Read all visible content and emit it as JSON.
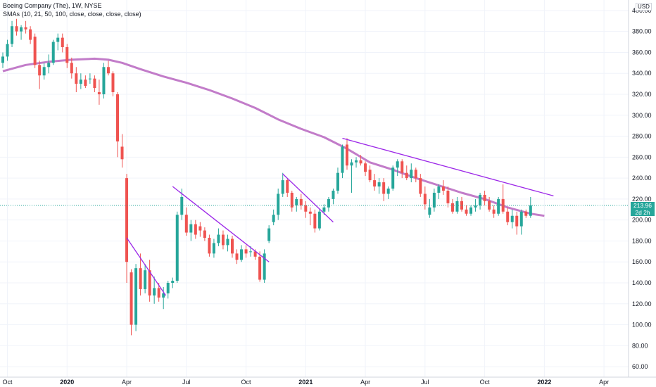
{
  "legend": {
    "title": "Boeing Company (The), 1W, NYSE",
    "indicator": "SMAs (10, 21, 50, 100, close, close, close, close)"
  },
  "currency": "USD",
  "last_price": {
    "value": "213.96",
    "countdown": "2d 2h"
  },
  "colors": {
    "up": "#26a69a",
    "down": "#ef5350",
    "sma": "#c27cc9",
    "trend": "#9c27e8",
    "grid": "#f0f3fa",
    "last": "#26a69a"
  },
  "chart_data": {
    "type": "candlestick",
    "y_axis": {
      "min": 50,
      "max": 410,
      "ticks": [
        60,
        80,
        100,
        120,
        140,
        160,
        180,
        200,
        220,
        240,
        260,
        280,
        300,
        320,
        340,
        360,
        380,
        400
      ]
    },
    "x_axis": {
      "ticks": [
        {
          "label": "Oct",
          "w": 1
        },
        {
          "label": "2020",
          "w": 14
        },
        {
          "label": "Apr",
          "w": 27
        },
        {
          "label": "Jul",
          "w": 40
        },
        {
          "label": "Oct",
          "w": 53
        },
        {
          "label": "2021",
          "w": 66
        },
        {
          "label": "Apr",
          "w": 79
        },
        {
          "label": "Jul",
          "w": 92
        },
        {
          "label": "Oct",
          "w": 105
        },
        {
          "label": "2022",
          "w": 118
        },
        {
          "label": "Apr",
          "w": 131
        }
      ]
    },
    "candles": [
      {
        "o": 350,
        "h": 360,
        "l": 345,
        "c": 356
      },
      {
        "o": 356,
        "h": 372,
        "l": 352,
        "c": 368
      },
      {
        "o": 368,
        "h": 390,
        "l": 365,
        "c": 385
      },
      {
        "o": 385,
        "h": 392,
        "l": 376,
        "c": 380
      },
      {
        "o": 380,
        "h": 386,
        "l": 372,
        "c": 384
      },
      {
        "o": 384,
        "h": 390,
        "l": 378,
        "c": 382
      },
      {
        "o": 382,
        "h": 385,
        "l": 368,
        "c": 372
      },
      {
        "o": 375,
        "h": 378,
        "l": 345,
        "c": 348
      },
      {
        "o": 348,
        "h": 352,
        "l": 325,
        "c": 338
      },
      {
        "o": 338,
        "h": 350,
        "l": 334,
        "c": 346
      },
      {
        "o": 346,
        "h": 358,
        "l": 340,
        "c": 350
      },
      {
        "o": 350,
        "h": 372,
        "l": 348,
        "c": 370
      },
      {
        "o": 370,
        "h": 378,
        "l": 362,
        "c": 374
      },
      {
        "o": 374,
        "h": 378,
        "l": 360,
        "c": 365
      },
      {
        "o": 365,
        "h": 368,
        "l": 345,
        "c": 350
      },
      {
        "o": 350,
        "h": 355,
        "l": 335,
        "c": 340
      },
      {
        "o": 340,
        "h": 346,
        "l": 322,
        "c": 330
      },
      {
        "o": 330,
        "h": 340,
        "l": 325,
        "c": 334
      },
      {
        "o": 334,
        "h": 338,
        "l": 326,
        "c": 328
      },
      {
        "o": 335,
        "h": 340,
        "l": 330,
        "c": 335
      },
      {
        "o": 335,
        "h": 338,
        "l": 322,
        "c": 326
      },
      {
        "o": 322,
        "h": 334,
        "l": 310,
        "c": 320
      },
      {
        "o": 320,
        "h": 350,
        "l": 316,
        "c": 346
      },
      {
        "o": 346,
        "h": 352,
        "l": 338,
        "c": 340
      },
      {
        "o": 340,
        "h": 342,
        "l": 318,
        "c": 322
      },
      {
        "o": 320,
        "h": 322,
        "l": 260,
        "c": 275
      },
      {
        "o": 270,
        "h": 282,
        "l": 250,
        "c": 258
      },
      {
        "o": 240,
        "h": 244,
        "l": 140,
        "c": 160
      },
      {
        "o": 150,
        "h": 153,
        "l": 90,
        "c": 100
      },
      {
        "o": 100,
        "h": 158,
        "l": 94,
        "c": 154
      },
      {
        "o": 154,
        "h": 168,
        "l": 128,
        "c": 134
      },
      {
        "o": 134,
        "h": 158,
        "l": 130,
        "c": 152
      },
      {
        "o": 152,
        "h": 162,
        "l": 122,
        "c": 128
      },
      {
        "o": 128,
        "h": 146,
        "l": 120,
        "c": 135
      },
      {
        "o": 135,
        "h": 140,
        "l": 122,
        "c": 126
      },
      {
        "o": 126,
        "h": 136,
        "l": 115,
        "c": 130
      },
      {
        "o": 130,
        "h": 142,
        "l": 125,
        "c": 140
      },
      {
        "o": 140,
        "h": 145,
        "l": 135,
        "c": 142
      },
      {
        "o": 142,
        "h": 208,
        "l": 140,
        "c": 205
      },
      {
        "o": 205,
        "h": 230,
        "l": 200,
        "c": 222
      },
      {
        "o": 205,
        "h": 212,
        "l": 185,
        "c": 188
      },
      {
        "o": 188,
        "h": 200,
        "l": 180,
        "c": 196
      },
      {
        "o": 196,
        "h": 200,
        "l": 182,
        "c": 186
      },
      {
        "o": 194,
        "h": 198,
        "l": 184,
        "c": 190
      },
      {
        "o": 190,
        "h": 193,
        "l": 180,
        "c": 183
      },
      {
        "o": 183,
        "h": 186,
        "l": 165,
        "c": 168
      },
      {
        "o": 168,
        "h": 182,
        "l": 164,
        "c": 178
      },
      {
        "o": 178,
        "h": 192,
        "l": 175,
        "c": 186
      },
      {
        "o": 186,
        "h": 190,
        "l": 172,
        "c": 176
      },
      {
        "o": 176,
        "h": 186,
        "l": 170,
        "c": 182
      },
      {
        "o": 182,
        "h": 185,
        "l": 164,
        "c": 168
      },
      {
        "o": 168,
        "h": 172,
        "l": 158,
        "c": 162
      },
      {
        "o": 162,
        "h": 176,
        "l": 160,
        "c": 172
      },
      {
        "o": 172,
        "h": 176,
        "l": 164,
        "c": 168
      },
      {
        "o": 170,
        "h": 175,
        "l": 165,
        "c": 170
      },
      {
        "o": 170,
        "h": 172,
        "l": 162,
        "c": 165
      },
      {
        "o": 165,
        "h": 170,
        "l": 141,
        "c": 143
      },
      {
        "o": 143,
        "h": 172,
        "l": 140,
        "c": 168
      },
      {
        "o": 180,
        "h": 195,
        "l": 178,
        "c": 192
      },
      {
        "o": 198,
        "h": 210,
        "l": 195,
        "c": 205
      },
      {
        "o": 205,
        "h": 230,
        "l": 200,
        "c": 225
      },
      {
        "o": 225,
        "h": 245,
        "l": 222,
        "c": 238
      },
      {
        "o": 238,
        "h": 240,
        "l": 222,
        "c": 226
      },
      {
        "o": 226,
        "h": 228,
        "l": 208,
        "c": 212
      },
      {
        "o": 214,
        "h": 222,
        "l": 208,
        "c": 220
      },
      {
        "o": 220,
        "h": 225,
        "l": 210,
        "c": 214
      },
      {
        "o": 214,
        "h": 218,
        "l": 202,
        "c": 208
      },
      {
        "o": 208,
        "h": 212,
        "l": 195,
        "c": 206
      },
      {
        "o": 206,
        "h": 210,
        "l": 188,
        "c": 192
      },
      {
        "o": 192,
        "h": 210,
        "l": 190,
        "c": 208
      },
      {
        "o": 208,
        "h": 215,
        "l": 205,
        "c": 212
      },
      {
        "o": 212,
        "h": 222,
        "l": 208,
        "c": 220
      },
      {
        "o": 220,
        "h": 230,
        "l": 215,
        "c": 228
      },
      {
        "o": 228,
        "h": 250,
        "l": 225,
        "c": 245
      },
      {
        "o": 245,
        "h": 272,
        "l": 240,
        "c": 270
      },
      {
        "o": 272,
        "h": 278,
        "l": 248,
        "c": 252
      },
      {
        "o": 252,
        "h": 258,
        "l": 226,
        "c": 255
      },
      {
        "o": 255,
        "h": 260,
        "l": 250,
        "c": 257
      },
      {
        "o": 257,
        "h": 262,
        "l": 252,
        "c": 254
      },
      {
        "o": 254,
        "h": 256,
        "l": 242,
        "c": 246
      },
      {
        "o": 248,
        "h": 252,
        "l": 236,
        "c": 238
      },
      {
        "o": 238,
        "h": 244,
        "l": 228,
        "c": 232
      },
      {
        "o": 232,
        "h": 240,
        "l": 225,
        "c": 236
      },
      {
        "o": 236,
        "h": 240,
        "l": 218,
        "c": 225
      },
      {
        "o": 225,
        "h": 232,
        "l": 220,
        "c": 230
      },
      {
        "o": 230,
        "h": 252,
        "l": 228,
        "c": 250
      },
      {
        "o": 250,
        "h": 258,
        "l": 242,
        "c": 256
      },
      {
        "o": 256,
        "h": 258,
        "l": 240,
        "c": 245
      },
      {
        "o": 245,
        "h": 252,
        "l": 238,
        "c": 240
      },
      {
        "o": 240,
        "h": 254,
        "l": 236,
        "c": 248
      },
      {
        "o": 248,
        "h": 250,
        "l": 236,
        "c": 240
      },
      {
        "o": 240,
        "h": 244,
        "l": 222,
        "c": 225
      },
      {
        "o": 225,
        "h": 232,
        "l": 210,
        "c": 215
      },
      {
        "o": 205,
        "h": 220,
        "l": 202,
        "c": 212
      },
      {
        "o": 212,
        "h": 230,
        "l": 208,
        "c": 226
      },
      {
        "o": 226,
        "h": 234,
        "l": 220,
        "c": 232
      },
      {
        "o": 232,
        "h": 238,
        "l": 224,
        "c": 228
      },
      {
        "o": 228,
        "h": 232,
        "l": 212,
        "c": 216
      },
      {
        "o": 216,
        "h": 220,
        "l": 206,
        "c": 208
      },
      {
        "o": 208,
        "h": 222,
        "l": 206,
        "c": 218
      },
      {
        "o": 218,
        "h": 222,
        "l": 208,
        "c": 210
      },
      {
        "o": 210,
        "h": 214,
        "l": 204,
        "c": 206
      },
      {
        "o": 206,
        "h": 214,
        "l": 204,
        "c": 212
      },
      {
        "o": 212,
        "h": 220,
        "l": 208,
        "c": 214
      },
      {
        "o": 214,
        "h": 226,
        "l": 210,
        "c": 224
      },
      {
        "o": 224,
        "h": 228,
        "l": 214,
        "c": 218
      },
      {
        "o": 218,
        "h": 222,
        "l": 208,
        "c": 210
      },
      {
        "o": 210,
        "h": 214,
        "l": 202,
        "c": 206
      },
      {
        "o": 206,
        "h": 222,
        "l": 204,
        "c": 220
      },
      {
        "o": 220,
        "h": 234,
        "l": 206,
        "c": 208
      },
      {
        "o": 208,
        "h": 212,
        "l": 195,
        "c": 198
      },
      {
        "o": 198,
        "h": 210,
        "l": 192,
        "c": 204
      },
      {
        "o": 204,
        "h": 208,
        "l": 186,
        "c": 194
      },
      {
        "o": 194,
        "h": 210,
        "l": 186,
        "c": 208
      },
      {
        "o": 208,
        "h": 210,
        "l": 202,
        "c": 204
      },
      {
        "o": 204,
        "h": 222,
        "l": 202,
        "c": 214
      }
    ],
    "sma": [
      {
        "w": 0,
        "v": 342
      },
      {
        "w": 5,
        "v": 348
      },
      {
        "w": 10,
        "v": 351
      },
      {
        "w": 15,
        "v": 353
      },
      {
        "w": 20,
        "v": 354
      },
      {
        "w": 23,
        "v": 353
      },
      {
        "w": 26,
        "v": 350
      },
      {
        "w": 30,
        "v": 344
      },
      {
        "w": 35,
        "v": 337
      },
      {
        "w": 40,
        "v": 331
      },
      {
        "w": 45,
        "v": 324
      },
      {
        "w": 50,
        "v": 316
      },
      {
        "w": 55,
        "v": 307
      },
      {
        "w": 60,
        "v": 296
      },
      {
        "w": 65,
        "v": 287
      },
      {
        "w": 70,
        "v": 279
      },
      {
        "w": 75,
        "v": 268
      },
      {
        "w": 80,
        "v": 255
      },
      {
        "w": 85,
        "v": 248
      },
      {
        "w": 90,
        "v": 240
      },
      {
        "w": 95,
        "v": 233
      },
      {
        "w": 100,
        "v": 226
      },
      {
        "w": 105,
        "v": 220
      },
      {
        "w": 110,
        "v": 212
      },
      {
        "w": 115,
        "v": 206
      },
      {
        "w": 118,
        "v": 204
      }
    ],
    "trendlines": [
      {
        "w1": 27,
        "v1": 183,
        "w2": 35.5,
        "v2": 128
      },
      {
        "w1": 37,
        "v1": 232,
        "w2": 58,
        "v2": 160
      },
      {
        "w1": 61,
        "v1": 244,
        "w2": 72,
        "v2": 198
      },
      {
        "w1": 74,
        "v1": 278,
        "w2": 120,
        "v2": 223
      }
    ]
  }
}
